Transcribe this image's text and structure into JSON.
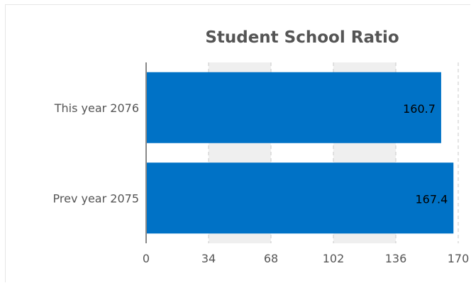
{
  "chart_data": {
    "type": "bar",
    "orientation": "horizontal",
    "title": "Student School Ratio",
    "categories": [
      "This year 2076",
      "Prev year 2075"
    ],
    "values": [
      160.7,
      167.4
    ],
    "value_labels": [
      "160.7",
      "167.4"
    ],
    "x_ticks": [
      0,
      34,
      68,
      102,
      136,
      170
    ],
    "xlim": [
      0,
      170
    ],
    "xlabel": "",
    "ylabel": "",
    "grid": "vertical dashed with alternating shaded bands",
    "legend": "none",
    "colors": {
      "bar": "#0072c6",
      "band": "#efefef",
      "grid": "#c8c8c8",
      "axis": "#888888",
      "label_text": "#555555",
      "value_text": "#000000",
      "title_text": "#555555"
    }
  }
}
